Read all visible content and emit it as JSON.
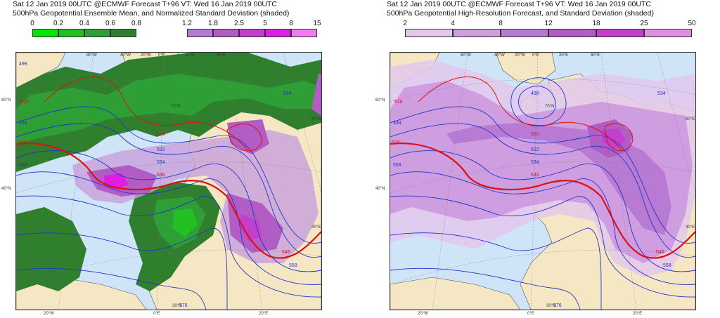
{
  "left": {
    "header_lines": [
      "Sat 12 Jan 2019 00UTC @ECMWF Forecast T+96 VT: Wed 16 Jan 2019 00UTC",
      "500hPa Geopotential Ensemble Mean, and Normalized Standard Deviation (shaded)"
    ],
    "green_scale": {
      "labels": [
        "0",
        "0.2",
        "0.4",
        "0.6",
        "0.8"
      ],
      "colors": [
        "#00e600",
        "#22c022",
        "#2e9f35",
        "#2f7f2f"
      ]
    },
    "purple_scale": {
      "labels": [
        "1.2",
        "1.8",
        "2.5",
        "5",
        "8",
        "15"
      ],
      "colors": [
        "#b57ad6",
        "#b25cc5",
        "#c43fce",
        "#de1ee0",
        "#f07ef0"
      ]
    },
    "contour_labels": [
      "510",
      "510",
      "516",
      "522",
      "534",
      "534",
      "546",
      "546",
      "558",
      "558",
      "576",
      "534",
      "498"
    ],
    "grid_labels": {
      "lat": [
        "60°N",
        "40°N"
      ],
      "lon_top": [
        "80°W",
        "40°W",
        "20°W",
        "0°E",
        "20°E",
        "40°E",
        "60°E"
      ],
      "lon_bottom": [
        "20°W",
        "0°E",
        "20°E"
      ],
      "right": [
        "60°E",
        "40°E"
      ],
      "inner": [
        "70°N",
        "30°N"
      ]
    }
  },
  "right": {
    "header_lines": [
      "Sat 12 Jan 2019 00UTC @ECMWF Forecast T+96 VT: Wed 16 Jan 2019 00UTC",
      "500hPa Geopotential High-Resolution Forecast, and Standard Deviation (shaded)"
    ],
    "purple_scale": {
      "labels": [
        "2",
        "4",
        "8",
        "12",
        "18",
        "25",
        "50"
      ],
      "colors": [
        "#e3c8ec",
        "#cf9ee0",
        "#b87ad2",
        "#b25cc5",
        "#c43fce",
        "#e08de6"
      ]
    },
    "contour_labels": [
      "498",
      "510",
      "510",
      "516",
      "522",
      "534",
      "534",
      "546",
      "546",
      "558",
      "558",
      "576",
      "534"
    ],
    "grid_labels": {
      "lat": [
        "60°N",
        "40°N"
      ],
      "lon_top": [
        "80°W",
        "40°W",
        "20°W",
        "0°E",
        "20°E",
        "40°E",
        "60°E"
      ],
      "lon_bottom": [
        "20°W",
        "0°E",
        "20°E"
      ],
      "right": [
        "60°E",
        "40°E"
      ],
      "inner": [
        "70°N",
        "30°N"
      ]
    }
  },
  "colors": {
    "ocean": "#cfe4f7",
    "land": "#f6e7c4",
    "contour_blue": "#2233cc",
    "contour_red": "#dd1111"
  }
}
